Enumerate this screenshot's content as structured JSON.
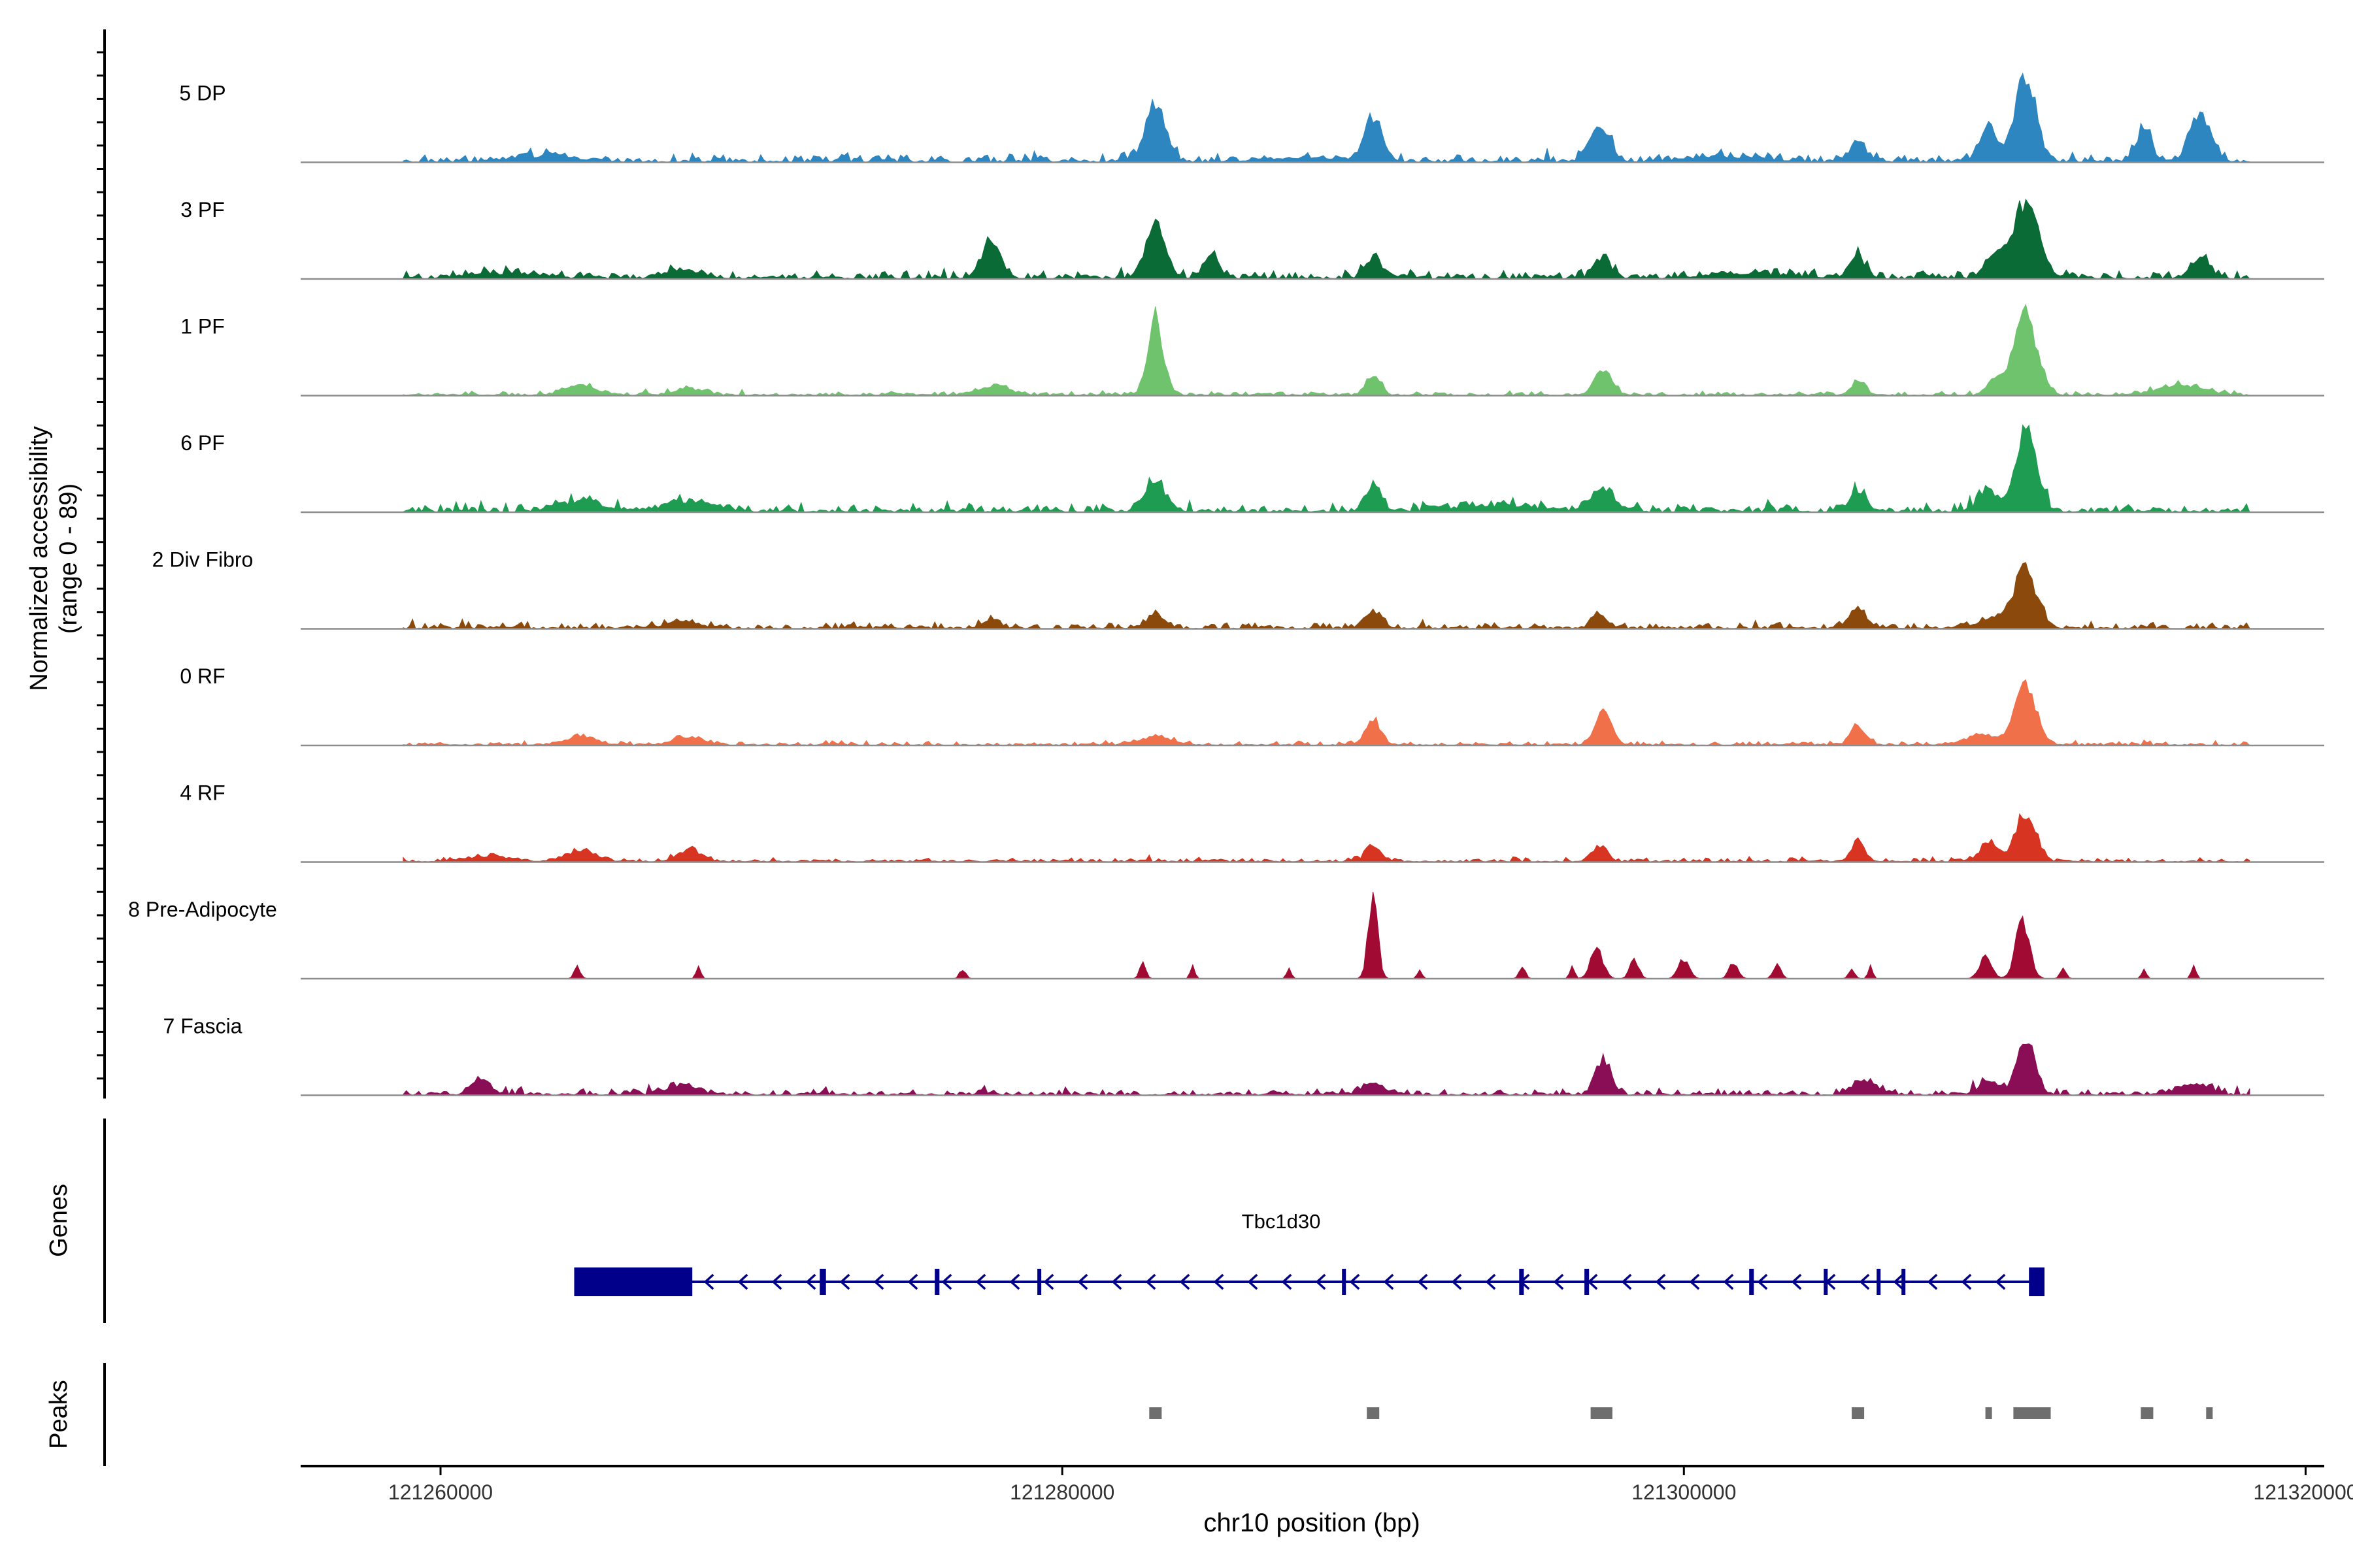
{
  "chart_data": {
    "type": "area",
    "ylabel_line1": "Normalized accessibility",
    "ylabel_line2": "(range 0 - 89)",
    "xlabel": "chr10 position (bp)",
    "xlim": [
      121255500,
      121320600
    ],
    "xticks": [
      121260000,
      121280000,
      121300000,
      121320000
    ],
    "xtick_labels": [
      "121260000",
      "121280000",
      "121300000",
      "121320000"
    ],
    "y_range": [
      0,
      89
    ],
    "track_start": 121258800,
    "track_end": 121318200,
    "bin_size_bp": 100,
    "series": [
      {
        "name": "5 DP",
        "color": "#2E86C1",
        "baseline": 4,
        "peaks": [
          [
            121283000,
            58,
            1.3
          ],
          [
            121290000,
            44,
            1.1
          ],
          [
            121297300,
            35,
            1.3
          ],
          [
            121305600,
            20,
            1.1
          ],
          [
            121301200,
            5,
            5
          ],
          [
            121309800,
            34,
            1.2
          ],
          [
            121311000,
            89,
            1.3
          ],
          [
            121314800,
            32,
            1.0
          ],
          [
            121316600,
            50,
            1.3
          ],
          [
            121263400,
            6,
            4
          ],
          [
            121288000,
            4,
            6
          ]
        ]
      },
      {
        "name": "3 PF",
        "color": "#0B6B36",
        "baseline": 4,
        "peaks": [
          [
            121277700,
            34,
            1.2
          ],
          [
            121283000,
            53,
            1.3
          ],
          [
            121284800,
            25,
            0.9
          ],
          [
            121290000,
            20,
            1.0
          ],
          [
            121297400,
            20,
            1.1
          ],
          [
            121305600,
            23,
            1.0
          ],
          [
            121310000,
            25,
            1.2
          ],
          [
            121311000,
            78,
            1.6
          ],
          [
            121316600,
            22,
            1.1
          ],
          [
            121267800,
            10,
            2
          ],
          [
            121262000,
            5,
            4
          ],
          [
            121302000,
            5,
            5
          ]
        ]
      },
      {
        "name": "1 PF",
        "color": "#6FC36D",
        "baseline": 2,
        "peaks": [
          [
            121283000,
            80,
            1.0
          ],
          [
            121290000,
            20,
            0.9
          ],
          [
            121297400,
            25,
            1.1
          ],
          [
            121305600,
            15,
            0.9
          ],
          [
            121310000,
            16,
            1.0
          ],
          [
            121311000,
            80,
            1.5
          ],
          [
            121277800,
            10,
            2
          ],
          [
            121264500,
            10,
            2
          ],
          [
            121316000,
            10,
            3
          ],
          [
            121268000,
            6,
            2
          ]
        ]
      },
      {
        "name": "6 PF",
        "color": "#1E9D52",
        "baseline": 4,
        "peaks": [
          [
            121283000,
            30,
            1.3
          ],
          [
            121290000,
            24,
            1.0
          ],
          [
            121297400,
            24,
            1.4
          ],
          [
            121305600,
            22,
            1.0
          ],
          [
            121309800,
            20,
            1.2
          ],
          [
            121311000,
            75,
            1.4
          ],
          [
            121264500,
            10,
            3
          ],
          [
            121268000,
            10,
            3
          ],
          [
            121294000,
            6,
            5
          ]
        ]
      },
      {
        "name": "2 Div Fibro",
        "color": "#8B4A0B",
        "baseline": 3,
        "peaks": [
          [
            121290000,
            18,
            1.1
          ],
          [
            121297300,
            14,
            1.0
          ],
          [
            121305600,
            22,
            1.0
          ],
          [
            121311000,
            58,
            1.5
          ],
          [
            121310000,
            10,
            2
          ],
          [
            121283000,
            14,
            1.0
          ],
          [
            121277700,
            8,
            1.2
          ],
          [
            121267800,
            7,
            2
          ]
        ]
      },
      {
        "name": "0 RF",
        "color": "#F0704A",
        "baseline": 2,
        "peaks": [
          [
            121290000,
            26,
            1.0
          ],
          [
            121297400,
            32,
            1.1
          ],
          [
            121305600,
            18,
            1.0
          ],
          [
            121311000,
            58,
            1.4
          ],
          [
            121309600,
            10,
            2
          ],
          [
            121264500,
            8,
            2
          ],
          [
            121268000,
            8,
            2
          ],
          [
            121283000,
            8,
            2
          ]
        ]
      },
      {
        "name": "4 RF",
        "color": "#D73521",
        "baseline": 2,
        "peaks": [
          [
            121305600,
            20,
            0.9
          ],
          [
            121309800,
            20,
            1.1
          ],
          [
            121311000,
            52,
            1.3
          ],
          [
            121290000,
            16,
            1.0
          ],
          [
            121297300,
            14,
            1.0
          ],
          [
            121264500,
            10,
            2
          ],
          [
            121268000,
            12,
            1.5
          ],
          [
            121261500,
            5,
            3
          ]
        ]
      },
      {
        "name": "8 Pre-Adipocyte",
        "color": "#A10A32",
        "baseline": 0,
        "peaks": [
          [
            121290000,
            88,
            0.6
          ],
          [
            121310900,
            60,
            0.9
          ],
          [
            121297200,
            30,
            0.8
          ],
          [
            121309700,
            22,
            0.8
          ],
          [
            121264400,
            12,
            0.4
          ],
          [
            121268300,
            14,
            0.3
          ],
          [
            121276800,
            10,
            0.4
          ],
          [
            121282600,
            16,
            0.4
          ],
          [
            121284200,
            12,
            0.3
          ],
          [
            121287300,
            10,
            0.3
          ],
          [
            121291500,
            10,
            0.3
          ],
          [
            121294800,
            12,
            0.4
          ],
          [
            121296400,
            14,
            0.3
          ],
          [
            121298400,
            18,
            0.6
          ],
          [
            121300000,
            20,
            0.7
          ],
          [
            121301600,
            16,
            0.6
          ],
          [
            121303000,
            14,
            0.5
          ],
          [
            121305400,
            10,
            0.4
          ],
          [
            121306000,
            12,
            0.3
          ],
          [
            121314800,
            10,
            0.3
          ],
          [
            121316400,
            14,
            0.3
          ],
          [
            121312200,
            10,
            0.4
          ]
        ]
      },
      {
        "name": "7 Fascia",
        "color": "#8A0E55",
        "baseline": 3,
        "peaks": [
          [
            121297400,
            35,
            1.0
          ],
          [
            121311000,
            55,
            1.2
          ],
          [
            121309800,
            14,
            1.3
          ],
          [
            121305800,
            14,
            1.6
          ],
          [
            121261300,
            15,
            1.2
          ],
          [
            121267800,
            10,
            2
          ],
          [
            121290000,
            10,
            1.5
          ],
          [
            121316400,
            10,
            2
          ]
        ]
      }
    ],
    "gene_track": {
      "label": "Genes",
      "gene_name": "Tbc1d30",
      "color": "#00008B",
      "strand": "-",
      "intron_span": [
        121264300,
        121311600
      ],
      "exons": [
        [
          121264300,
          121268100
        ],
        [
          121272200,
          121272400
        ],
        [
          121275900,
          121276050
        ],
        [
          121279200,
          121279300
        ],
        [
          121289000,
          121289100
        ],
        [
          121294700,
          121294850
        ],
        [
          121296800,
          121296950
        ],
        [
          121302100,
          121302250
        ],
        [
          121304500,
          121304600
        ],
        [
          121306200,
          121306260
        ],
        [
          121307000,
          121307060
        ],
        [
          121311100,
          121311600
        ]
      ]
    },
    "peak_track": {
      "label": "Peaks",
      "color": "#6E6E6E",
      "peaks": [
        [
          121282800,
          121283200
        ],
        [
          121289800,
          121290200
        ],
        [
          121297000,
          121297700
        ],
        [
          121305400,
          121305800
        ],
        [
          121309700,
          121309900
        ],
        [
          121310600,
          121311800
        ],
        [
          121314700,
          121315100
        ],
        [
          121316800,
          121317000
        ]
      ]
    }
  }
}
